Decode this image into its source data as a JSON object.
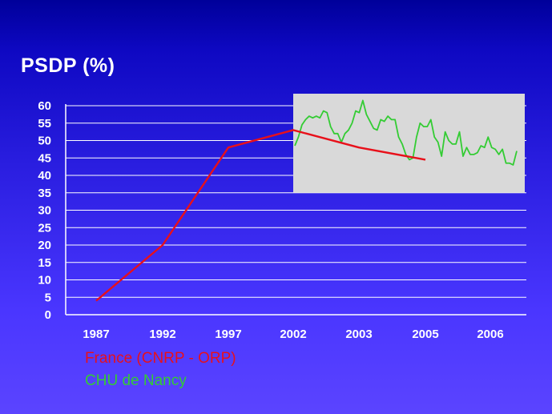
{
  "slide": {
    "title": "PSDP (%)"
  },
  "colors": {
    "background_top": "#00009a",
    "background_bottom": "#5b44ff",
    "france_line": "#e8101a",
    "nancy_line": "#33cc33",
    "inset_panel": "#d9d9d9",
    "grid": "#ffffff",
    "text": "#ffffff"
  },
  "legend": {
    "france": "France (CNRP - ORP)",
    "nancy": "CHU de Nancy"
  },
  "chart_data": {
    "type": "line",
    "title": "PSDP (%)",
    "xlabel": "",
    "ylabel": "",
    "ylim": [
      0,
      60
    ],
    "y_ticks": [
      0,
      5,
      10,
      15,
      20,
      25,
      30,
      35,
      40,
      45,
      50,
      55,
      60
    ],
    "x_tick_labels": [
      "1987",
      "1992",
      "1997",
      "2002",
      "2003",
      "2005",
      "2006"
    ],
    "grid": "horizontal",
    "legend_placement": "bottom-left",
    "series": [
      {
        "name": "France (CNRP - ORP)",
        "color": "#e8101a",
        "points": [
          {
            "x": "1987",
            "y": 4
          },
          {
            "x": "1992",
            "y": 20
          },
          {
            "x": "1997",
            "y": 48
          },
          {
            "x": "2002",
            "y": 53
          },
          {
            "x": "2003",
            "y": 48
          },
          {
            "x": "2005",
            "y": 44.5
          }
        ]
      },
      {
        "name": "CHU de Nancy",
        "color": "#33cc33",
        "x_range": [
          "2002",
          "2006"
        ],
        "values": [
          48.5,
          51,
          54.5,
          56,
          57,
          56.5,
          57,
          56.5,
          58.5,
          58,
          54,
          52,
          52,
          49.5,
          52,
          53,
          55,
          58.5,
          58,
          61.5,
          57.5,
          55.5,
          53.5,
          53,
          56,
          55.5,
          57,
          56,
          56,
          51,
          49,
          46,
          44.5,
          45,
          51,
          55,
          54,
          54,
          56,
          51,
          49.5,
          45.5,
          52.5,
          50,
          49,
          49,
          52.5,
          45.5,
          48,
          46,
          46,
          46.5,
          48.5,
          48,
          51,
          48,
          47.5,
          46,
          47.5,
          43.5,
          43.5,
          43,
          47
        ]
      }
    ]
  }
}
